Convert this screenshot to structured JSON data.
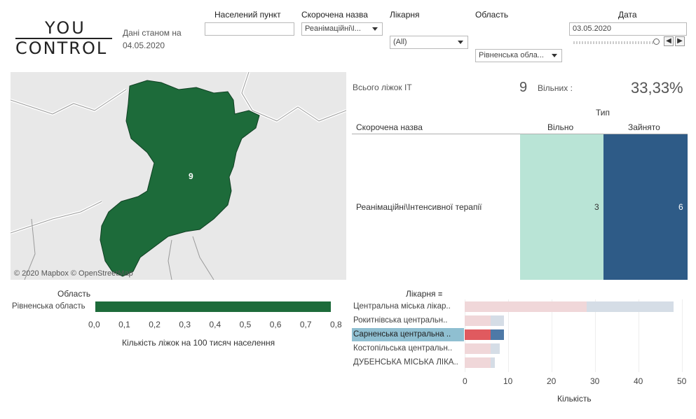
{
  "logo": {
    "line1": "YOU",
    "line2": "CONTROL"
  },
  "as_of": {
    "text": "Дані станом на 04.05.2020"
  },
  "filters": {
    "settlement": {
      "label": "Населений пункт",
      "value": ""
    },
    "short_name": {
      "label": "Скорочена назва",
      "value": "Реанімаційні\\І..."
    },
    "hospital": {
      "label": "Лікарня",
      "value": "(All)"
    },
    "region": {
      "label": "Область",
      "value": "Рівненська обла..."
    },
    "date": {
      "label": "Дата",
      "value": "03.05.2020"
    }
  },
  "map": {
    "marker_value": "9",
    "credit": "© 2020 Mapbox  © OpenStreetMap",
    "fill_color": "#1d6b3a"
  },
  "kpi": {
    "total_label": "Всього ліжок ІТ",
    "total_value": "9",
    "free_label": "Вільних :",
    "free_pct": "33,33%"
  },
  "type_table": {
    "type_header": "Тип",
    "row_header": "Скорочена назва",
    "col_free": "Вільно",
    "col_busy": "Зайнято",
    "row_label": "Реанімаційні\\Інтенсивної терапії",
    "free_value": "3",
    "busy_value": "6",
    "colors": {
      "free": "#b9e4d6",
      "busy": "#2e5b87"
    }
  },
  "oblast_chart": {
    "header": "Область",
    "row_label": "Рівненська область",
    "value": 0.78,
    "axis_ticks": [
      "0,0",
      "0,1",
      "0,2",
      "0,3",
      "0,4",
      "0,5",
      "0,6",
      "0,7",
      "0,8"
    ],
    "xlabel": "Кількість ліжок на 100 тисяч населення",
    "color": "#1d6b3a"
  },
  "hospital_chart": {
    "header": "Лікарня",
    "xlabel": "Кількість",
    "axis_ticks": [
      "0",
      "10",
      "20",
      "30",
      "40",
      "50"
    ],
    "rows": [
      {
        "label": "Центральна міська лікар..",
        "a": 28,
        "b": 20,
        "highlight": false
      },
      {
        "label": "Рокитнівська центральн..",
        "a": 6,
        "b": 3,
        "highlight": false
      },
      {
        "label": "Сарненська центральна ..",
        "a": 6,
        "b": 3,
        "highlight": true
      },
      {
        "label": "Костопільська центральн..",
        "a": 6,
        "b": 2,
        "highlight": false
      },
      {
        "label": "ДУБЕНСЬКА МІСЬКА ЛІКА..",
        "a": 6,
        "b": 1,
        "highlight": false
      }
    ],
    "colors": {
      "a": "#f0d7d9",
      "b": "#d5dde6",
      "a_hl": "#e05a5f",
      "b_hl": "#4e79a7",
      "row_hl": "#8fbfd1"
    }
  }
}
